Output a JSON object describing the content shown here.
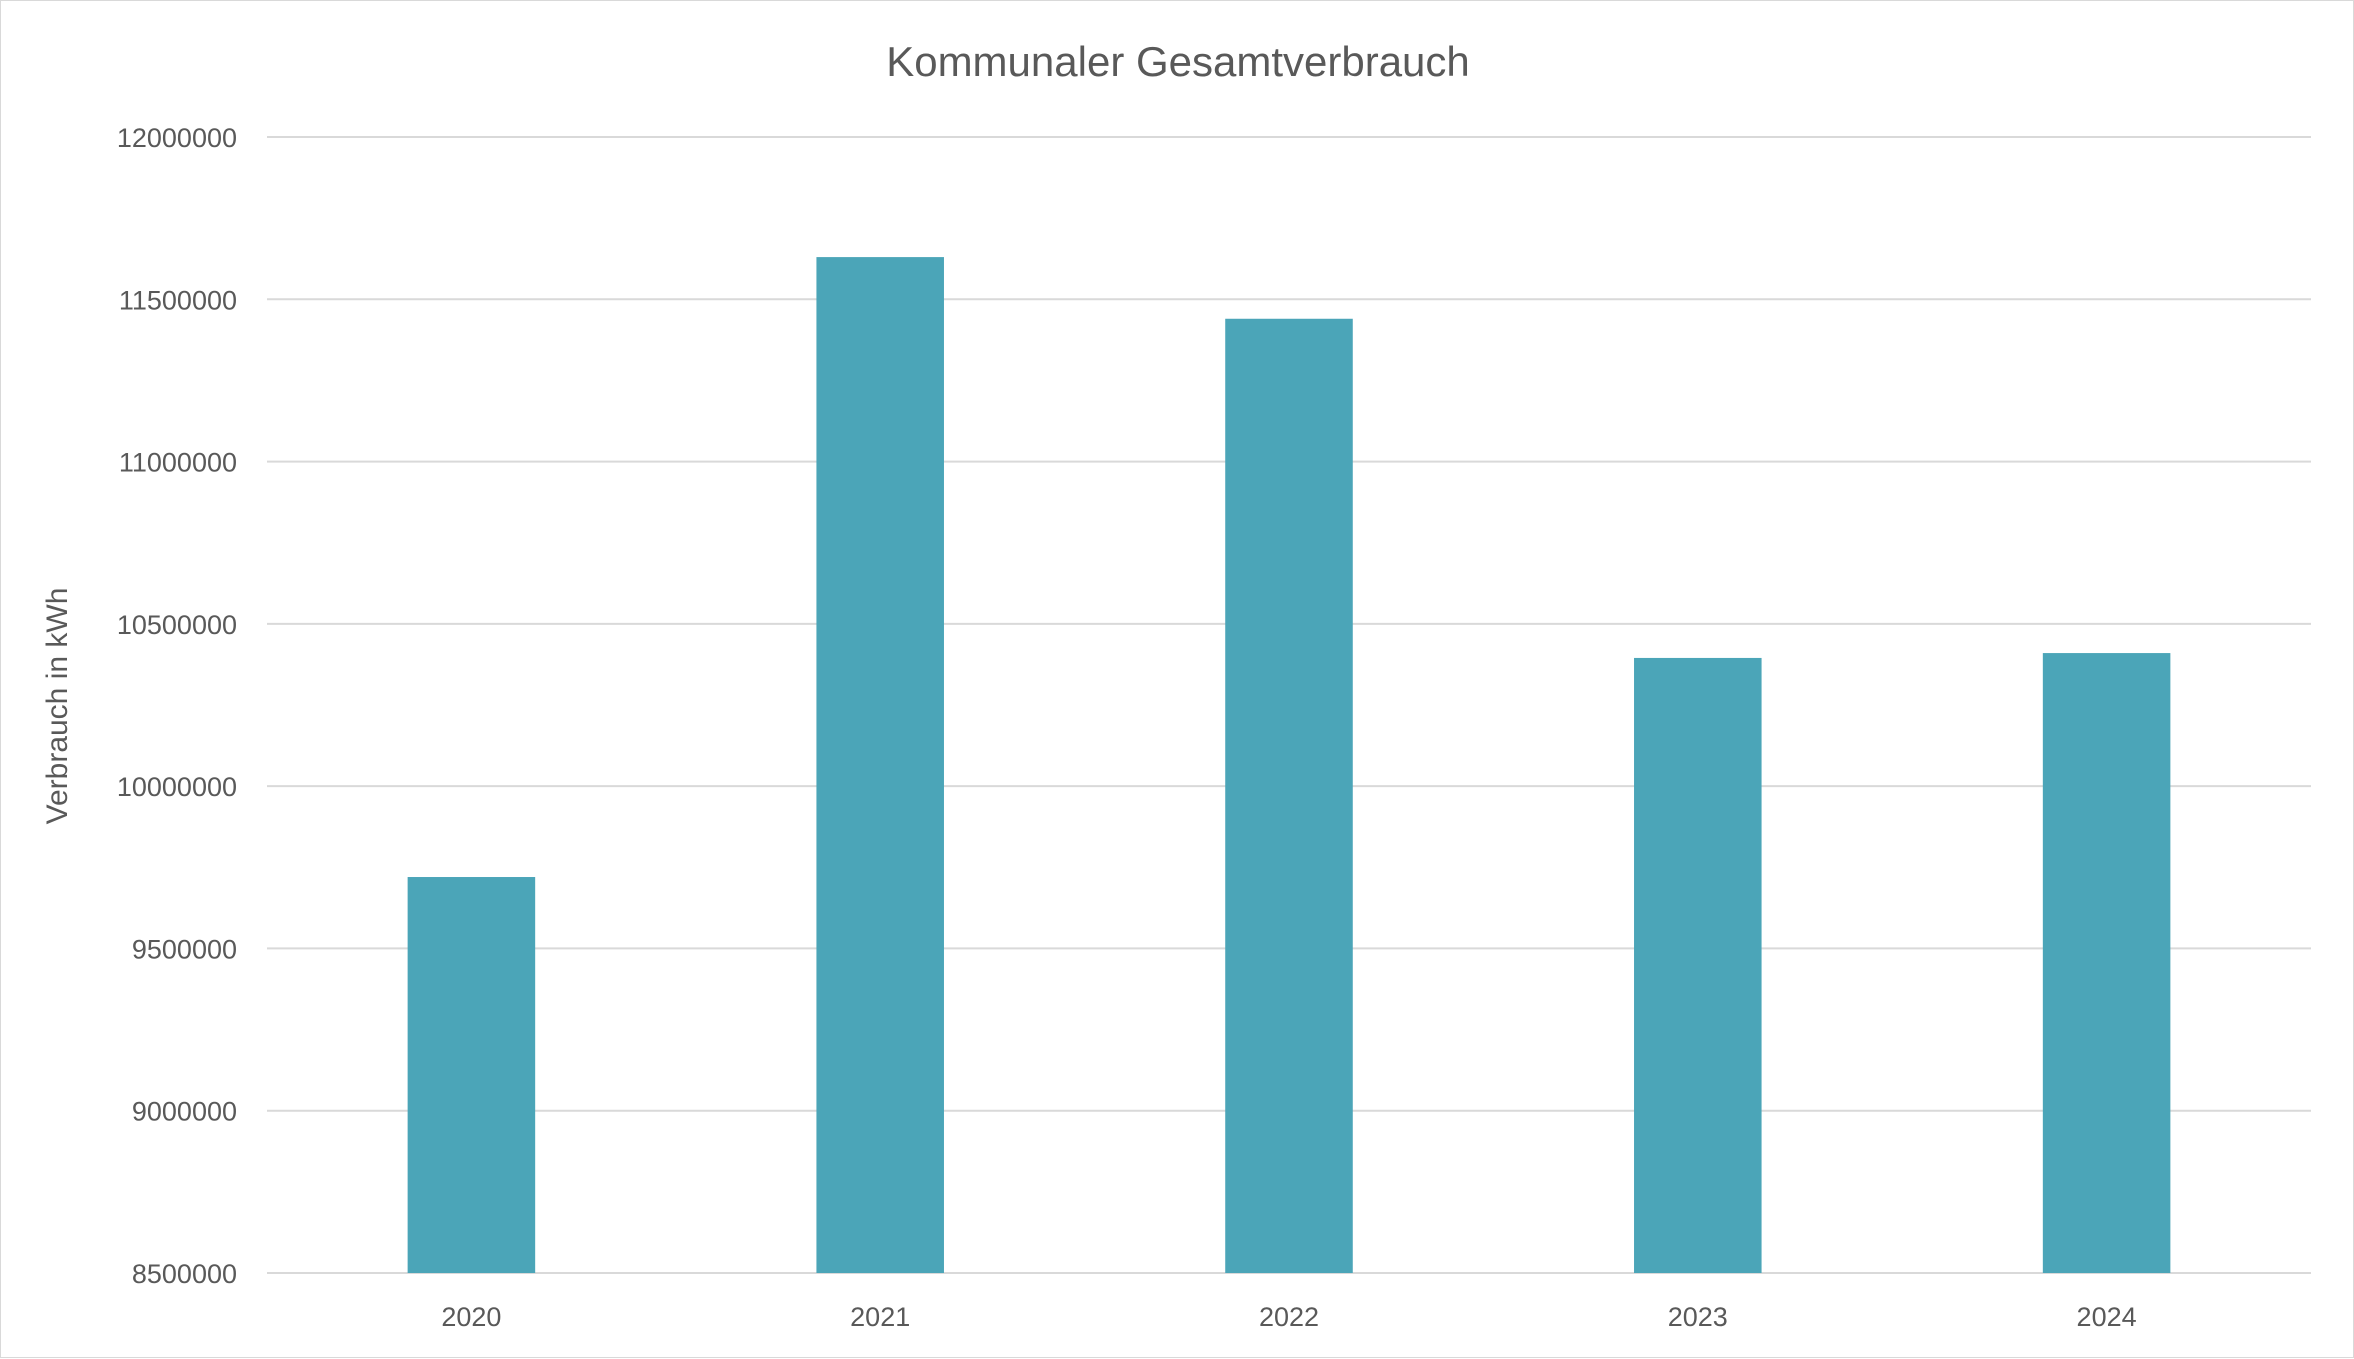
{
  "chart_data": {
    "type": "bar",
    "title": "Kommunaler Gesamtverbrauch",
    "xlabel": "",
    "ylabel": "Verbrauch in kWh",
    "categories": [
      "2020",
      "2021",
      "2022",
      "2023",
      "2024"
    ],
    "series": [
      {
        "values": [
          9720000,
          11630000,
          11440000,
          10395000,
          10410000
        ],
        "color": "#4BA5B8"
      }
    ],
    "ylim": [
      8500000,
      12000000
    ],
    "yticks": [
      8500000,
      9000000,
      9500000,
      10000000,
      10500000,
      11000000,
      11500000,
      12000000
    ],
    "ytick_labels": [
      "8500000",
      "9000000",
      "9500000",
      "10000000",
      "10500000",
      "11000000",
      "11500000",
      "12000000"
    ],
    "grid": true,
    "legend": "none",
    "colors": {
      "bar": "#4BA5B8",
      "grid": "#D9D9D9",
      "text": "#595959"
    }
  }
}
